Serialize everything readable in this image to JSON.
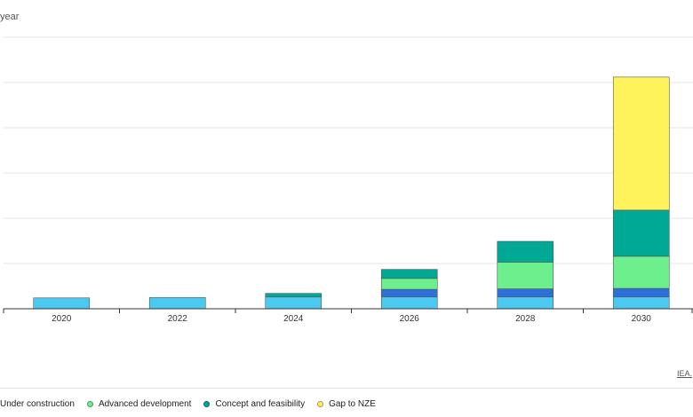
{
  "unit_label": "year",
  "credit": "IEA.",
  "colors": {
    "gridline": "#e6e6e6",
    "axis": "#333333",
    "bar_edge": "#555555"
  },
  "chart_data": {
    "type": "bar",
    "stacked": true,
    "categories": [
      "2020",
      "2022",
      "2024",
      "2026",
      "2028",
      "2030"
    ],
    "ylim": [
      0,
      60
    ],
    "grid": true,
    "legend_position": "bottom-left",
    "series": [
      {
        "name": "",
        "color": "#4cc9f0",
        "values": [
          2.4,
          2.5,
          2.6,
          2.6,
          2.6,
          2.6
        ]
      },
      {
        "name": "",
        "color": "#2e6fd9",
        "values": [
          0,
          0,
          0,
          1.7,
          1.8,
          1.9
        ]
      },
      {
        "name": "Advanced development",
        "color": "#6eef8e",
        "values": [
          0,
          0,
          0,
          2.4,
          5.9,
          7.1
        ]
      },
      {
        "name": "Concept and feasibility",
        "color": "#00a896",
        "values": [
          0,
          0,
          0.8,
          2.0,
          4.6,
          10.2
        ]
      },
      {
        "name": "Gap to NZE",
        "color": "#fff35c",
        "values": [
          0,
          0,
          0,
          0,
          0,
          29.4
        ]
      }
    ]
  },
  "legend": [
    {
      "label": "Under construction",
      "color": "#4cc9f0",
      "show_swatch": false
    },
    {
      "label": "Advanced development",
      "color": "#6eef8e",
      "show_swatch": true
    },
    {
      "label": "Concept and feasibility",
      "color": "#00a896",
      "show_swatch": true
    },
    {
      "label": "Gap to NZE",
      "color": "#fff35c",
      "show_swatch": true
    }
  ]
}
